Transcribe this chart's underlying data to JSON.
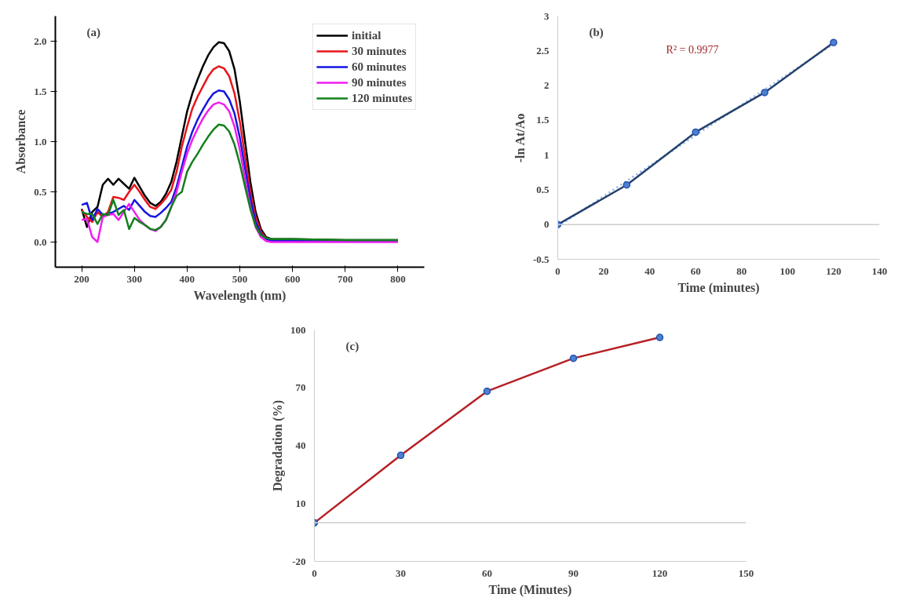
{
  "chart_data": [
    {
      "type": "line",
      "xlabel": "Wavelength (nm)",
      "ylabel": "Absorbance",
      "annotations": [
        "(a)"
      ],
      "legend": "top right",
      "xlim": [
        150,
        850
      ],
      "xticks": [
        200,
        300,
        400,
        500,
        600,
        700,
        800
      ],
      "ylim": [
        -0.25,
        2.25
      ],
      "yticks": [
        {
          "value": 0,
          "label": "0.0"
        },
        {
          "value": 0.5,
          "label": "0.5"
        },
        {
          "value": 1,
          "label": "1.0"
        },
        {
          "value": 1.5,
          "label": "1.5"
        },
        {
          "value": 2,
          "label": "2.0"
        }
      ],
      "x": [
        200,
        210,
        220,
        230,
        240,
        250,
        260,
        270,
        280,
        290,
        300,
        310,
        320,
        330,
        340,
        350,
        360,
        370,
        380,
        390,
        400,
        410,
        420,
        430,
        440,
        450,
        460,
        470,
        480,
        490,
        500,
        510,
        520,
        530,
        540,
        550,
        560,
        600,
        700,
        800
      ],
      "series": [
        {
          "name": "initial",
          "color": "#000000",
          "values": [
            0.33,
            0.15,
            0.3,
            0.35,
            0.57,
            0.63,
            0.57,
            0.63,
            0.58,
            0.53,
            0.64,
            0.55,
            0.46,
            0.39,
            0.36,
            0.4,
            0.48,
            0.6,
            0.8,
            1.05,
            1.3,
            1.48,
            1.62,
            1.75,
            1.86,
            1.94,
            1.99,
            1.98,
            1.9,
            1.72,
            1.4,
            1.0,
            0.6,
            0.3,
            0.13,
            0.05,
            0.03,
            0.03,
            0.02,
            0.02
          ]
        },
        {
          "name": "30 minutes",
          "color": "#e8151b",
          "x": [
            200,
            210,
            220,
            230,
            240,
            250,
            260,
            270,
            280,
            290,
            300,
            310,
            320,
            330,
            340,
            350,
            360,
            370,
            380,
            390,
            400,
            410,
            420,
            430,
            440,
            450,
            460,
            470,
            480,
            490,
            500,
            510,
            520,
            530,
            540,
            550,
            560
          ],
          "values": [
            0.32,
            0.25,
            0.2,
            0.3,
            0.25,
            0.3,
            0.45,
            0.44,
            0.42,
            0.5,
            0.57,
            0.5,
            0.42,
            0.35,
            0.33,
            0.38,
            0.44,
            0.52,
            0.7,
            0.95,
            1.15,
            1.33,
            1.45,
            1.55,
            1.65,
            1.72,
            1.75,
            1.73,
            1.65,
            1.48,
            1.2,
            0.85,
            0.5,
            0.25,
            0.1,
            0.04,
            0.02
          ]
        },
        {
          "name": "60 minutes",
          "color": "#1515e0",
          "values": [
            0.37,
            0.39,
            0.22,
            0.33,
            0.27,
            0.28,
            0.3,
            0.33,
            0.36,
            0.32,
            0.42,
            0.36,
            0.3,
            0.26,
            0.25,
            0.29,
            0.34,
            0.4,
            0.55,
            0.75,
            0.95,
            1.1,
            1.22,
            1.32,
            1.41,
            1.48,
            1.51,
            1.5,
            1.42,
            1.28,
            1.04,
            0.73,
            0.43,
            0.2,
            0.08,
            0.03,
            0.01,
            0.01,
            0.01,
            0.01
          ]
        },
        {
          "name": "90 minutes",
          "color": "#f01ef0",
          "values": [
            0.22,
            0.23,
            0.05,
            0.0,
            0.25,
            0.27,
            0.28,
            0.22,
            0.3,
            0.38,
            0.3,
            0.22,
            0.17,
            0.13,
            0.11,
            0.15,
            0.22,
            0.35,
            0.5,
            0.7,
            0.88,
            1.02,
            1.13,
            1.23,
            1.31,
            1.37,
            1.39,
            1.37,
            1.3,
            1.15,
            0.92,
            0.62,
            0.35,
            0.15,
            0.05,
            0.01,
            0.0,
            0.0,
            0.0,
            0.0
          ]
        },
        {
          "name": "120 minutes",
          "color": "#13801b",
          "values": [
            0.3,
            0.28,
            0.28,
            0.18,
            0.28,
            0.27,
            0.42,
            0.27,
            0.32,
            0.13,
            0.24,
            0.2,
            0.17,
            0.13,
            0.12,
            0.15,
            0.22,
            0.35,
            0.46,
            0.5,
            0.7,
            0.8,
            0.88,
            0.97,
            1.05,
            1.12,
            1.17,
            1.16,
            1.1,
            0.97,
            0.78,
            0.55,
            0.33,
            0.16,
            0.07,
            0.04,
            0.03,
            0.03,
            0.02,
            0.02
          ]
        }
      ]
    },
    {
      "type": "line",
      "xlabel": "Time (minutes)",
      "ylabel": "-ln At/Ao",
      "annotations": [
        "(b)",
        "R² = 0.9977"
      ],
      "ref_lines": [
        {
          "axis": "y",
          "value": 0,
          "color": "#cccccc"
        }
      ],
      "marker": "circle",
      "xlim": [
        0,
        140
      ],
      "xticks": [
        0,
        20,
        40,
        60,
        80,
        100,
        120,
        140
      ],
      "ylim": [
        -0.5,
        3
      ],
      "yticks": [
        -0.5,
        0,
        0.5,
        1,
        1.5,
        2,
        2.5,
        3
      ],
      "x": [
        0,
        30,
        60,
        90,
        120
      ],
      "series": [
        {
          "color": "#8fb4e3",
          "x": [
            0,
            120
          ],
          "values": [
            -0.03,
            2.6
          ],
          "line_style": "dotted",
          "marker": "none"
        },
        {
          "color": "#24406e",
          "values": [
            0,
            0.57,
            1.33,
            1.9,
            2.62
          ]
        }
      ]
    },
    {
      "type": "line",
      "xlabel": "Time (Minutes)",
      "ylabel": "Degradation (%)",
      "annotations": [
        "(c)"
      ],
      "ref_lines": [
        {
          "axis": "y",
          "value": 0,
          "color": "#cccccc"
        }
      ],
      "marker": "circle",
      "xlim": [
        0,
        150
      ],
      "xticks": [
        0,
        30,
        60,
        90,
        120,
        150
      ],
      "ylim": [
        -20,
        100
      ],
      "yticks": [
        -20,
        10,
        40,
        70,
        100
      ],
      "x": [
        0,
        30,
        60,
        90,
        120
      ],
      "series": [
        {
          "color": "#b52025",
          "values": [
            0,
            35,
            68.2,
            85.3,
            96.1
          ]
        }
      ]
    }
  ]
}
